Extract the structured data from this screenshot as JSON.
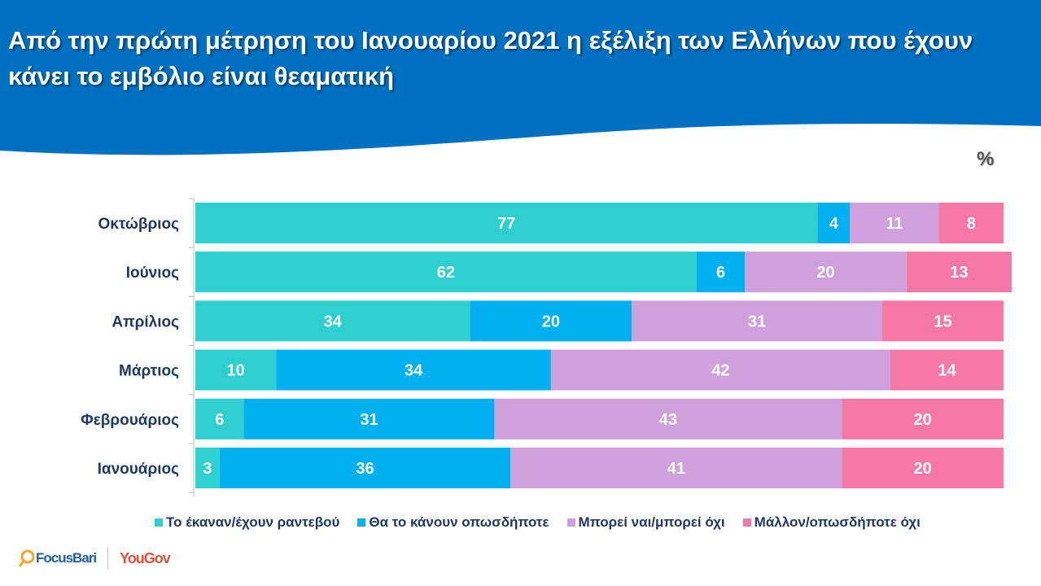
{
  "title": "Από την πρώτη μέτρηση του Ιανουαρίου 2021 η εξέλιξη των Ελλήνων που έχουν κάνει το εμβόλιο είναι θεαματική",
  "unit_label": "%",
  "colors": {
    "header": "#0070c0"
  },
  "logos": [
    "FocusBari",
    "YouGov"
  ],
  "chart_data": {
    "type": "bar",
    "orientation": "horizontal",
    "stacked": true,
    "title": "Από την πρώτη μέτρηση του Ιανουαρίου 2021 η εξέλιξη των Ελλήνων που έχουν κάνει το εμβόλιο είναι θεαματική",
    "xlim": [
      0,
      100
    ],
    "grid": false,
    "legend_position": "bottom",
    "categories": [
      "Οκτώβριος",
      "Ιούνιος",
      "Απρίλιος",
      "Μάρτιος",
      "Φεβρουάριος",
      "Ιανουάριος"
    ],
    "series": [
      {
        "name": "Το έκαναν/έχουν ραντεβού",
        "color": "#2ecfcf",
        "values": [
          77,
          62,
          34,
          10,
          6,
          3
        ]
      },
      {
        "name": "Θα το κάνουν οπωσδήποτε",
        "color": "#00b0f0",
        "values": [
          4,
          6,
          20,
          34,
          31,
          36
        ]
      },
      {
        "name": "Μπορεί ναι/μπορεί όχι",
        "color": "#cfa0dc",
        "values": [
          11,
          20,
          31,
          42,
          43,
          41
        ]
      },
      {
        "name": "Μάλλον/οπωσδήποτε όχι",
        "color": "#f47aa5",
        "values": [
          8,
          13,
          15,
          14,
          20,
          20
        ]
      }
    ]
  }
}
